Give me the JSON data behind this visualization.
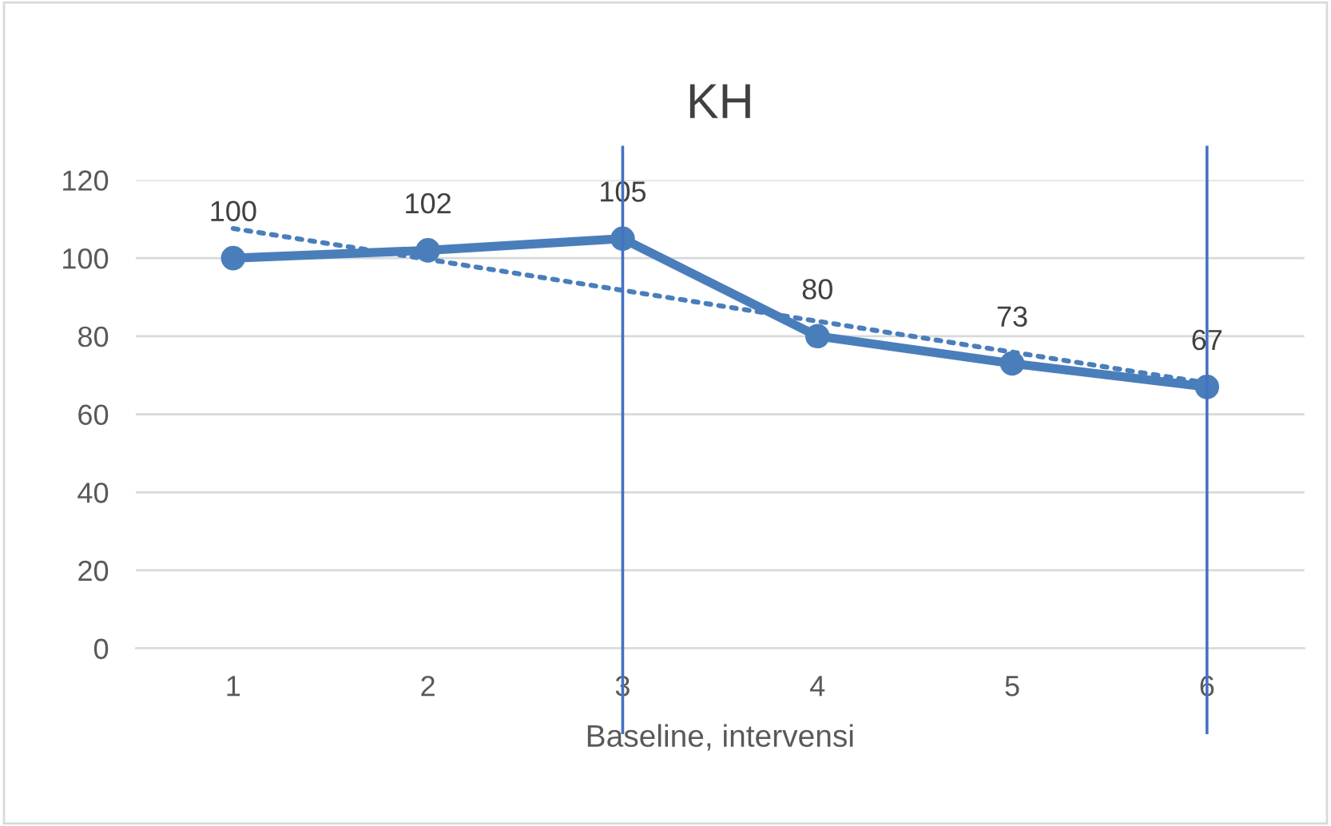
{
  "chart_data": {
    "type": "line",
    "title": "KH",
    "xlabel": "Baseline, intervensi",
    "categories": [
      "1",
      "2",
      "3",
      "4",
      "5",
      "6"
    ],
    "series": [
      {
        "color": "#4a7ebb",
        "values": [
          100,
          102,
          105,
          80,
          73,
          67
        ],
        "marker": "circle",
        "line_style": "solid",
        "data_labels": true
      },
      {
        "type": "line",
        "color": "#4a7ebb",
        "x": [
          "1",
          "6"
        ],
        "values": [
          107.6,
          68
        ],
        "marker": "none",
        "line_style": "dotted"
      }
    ],
    "ylim": [
      0,
      120
    ],
    "yticks": [
      0,
      20,
      40,
      60,
      80,
      100,
      120
    ],
    "grid": "y",
    "legend": false,
    "ref_lines": [
      {
        "axis": "x",
        "value": "3",
        "color": "#4472c4"
      },
      {
        "axis": "x",
        "value": "6",
        "color": "#4472c4"
      }
    ]
  }
}
